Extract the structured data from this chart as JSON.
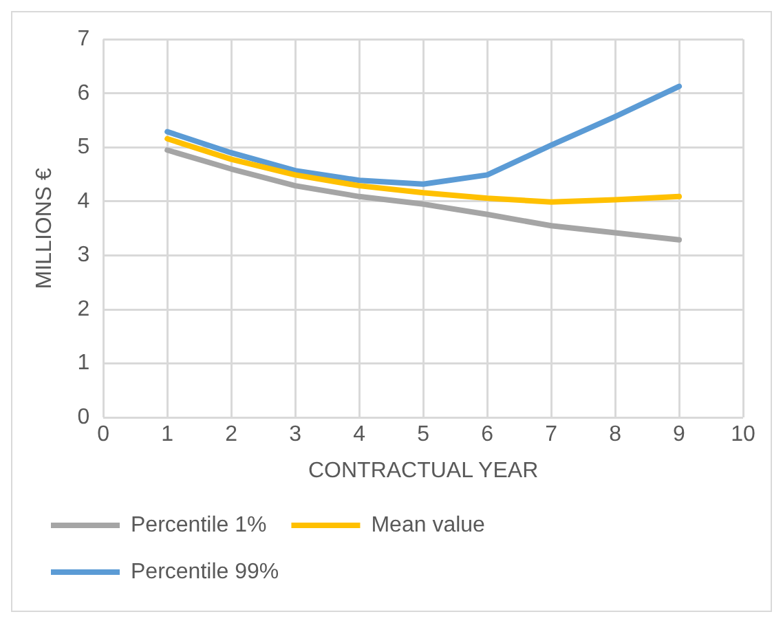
{
  "chart_data": {
    "type": "line",
    "xlabel": "CONTRACTUAL YEAR",
    "ylabel": "MILLIONS €",
    "x": [
      1,
      2,
      3,
      4,
      5,
      6,
      7,
      8,
      9
    ],
    "series": [
      {
        "name": "Percentile 1%",
        "color": "#a5a5a5",
        "values": [
          4.95,
          4.6,
          4.29,
          4.09,
          3.95,
          3.76,
          3.55,
          3.42,
          3.29
        ]
      },
      {
        "name": "Mean value",
        "color": "#ffc000",
        "values": [
          5.16,
          4.78,
          4.49,
          4.29,
          4.16,
          4.06,
          3.99,
          4.03,
          4.09
        ]
      },
      {
        "name": "Percentile 99%",
        "color": "#5b9bd5",
        "values": [
          5.29,
          4.9,
          4.57,
          4.39,
          4.32,
          4.49,
          5.04,
          5.57,
          6.13
        ]
      }
    ],
    "xlim": [
      0,
      10
    ],
    "xticks": [
      0,
      1,
      2,
      3,
      4,
      5,
      6,
      7,
      8,
      9,
      10
    ],
    "ylim": [
      0,
      7
    ],
    "yticks": [
      0,
      1,
      2,
      3,
      4,
      5,
      6,
      7
    ],
    "grid": true,
    "legend": "bottom",
    "marker": "none",
    "line_style": "solid"
  }
}
